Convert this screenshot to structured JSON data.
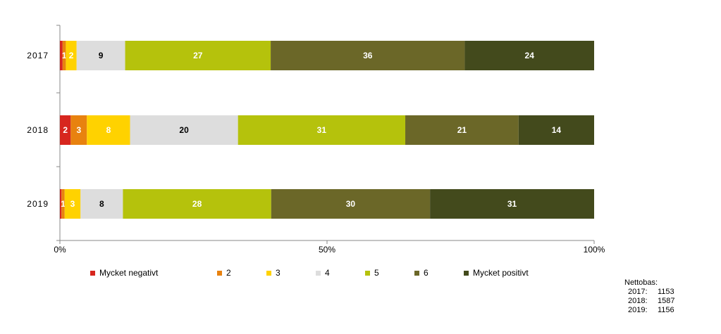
{
  "chart_data": {
    "type": "bar",
    "orientation": "horizontal",
    "stacked": "percent",
    "categories": [
      "2017",
      "2018",
      "2019"
    ],
    "series": [
      {
        "name": "Mycket negativt",
        "color": "#d7261e",
        "values": [
          0.5,
          2,
          0.3
        ],
        "labels": [
          "",
          "2",
          ""
        ]
      },
      {
        "name": "2",
        "color": "#e8820f",
        "values": [
          0.6,
          3,
          0.6
        ],
        "labels": [
          "1",
          "3",
          "1"
        ]
      },
      {
        "name": "3",
        "color": "#ffd200",
        "values": [
          2,
          8,
          3
        ],
        "labels": [
          "2",
          "8",
          "3"
        ]
      },
      {
        "name": "4",
        "color": "#dddddd",
        "values": [
          9,
          20,
          8
        ],
        "labels": [
          "9",
          "20",
          "8"
        ]
      },
      {
        "name": "5",
        "color": "#b5c20c",
        "values": [
          27,
          31,
          28
        ],
        "labels": [
          "27",
          "31",
          "28"
        ]
      },
      {
        "name": "6",
        "color": "#6b6728",
        "values": [
          36,
          21,
          30
        ],
        "labels": [
          "36",
          "21",
          "30"
        ]
      },
      {
        "name": "Mycket positivt",
        "color": "#434a1c",
        "values": [
          24,
          14,
          31
        ],
        "labels": [
          "24",
          "14",
          "31"
        ]
      }
    ],
    "label_colors": [
      "#ffffff",
      "#ffffff",
      "#ffffff",
      "#000000",
      "#ffffff",
      "#ffffff",
      "#ffffff"
    ],
    "x_ticks": [
      "0%",
      "50%",
      "100%"
    ],
    "xlim": [
      0,
      100
    ],
    "legend_position": "bottom",
    "grid": false
  },
  "nettobas": {
    "title": "Nettobas:",
    "rows": [
      {
        "year": "2017:",
        "value": "1153"
      },
      {
        "year": "2018:",
        "value": "1587"
      },
      {
        "year": "2019:",
        "value": "1156"
      }
    ]
  }
}
